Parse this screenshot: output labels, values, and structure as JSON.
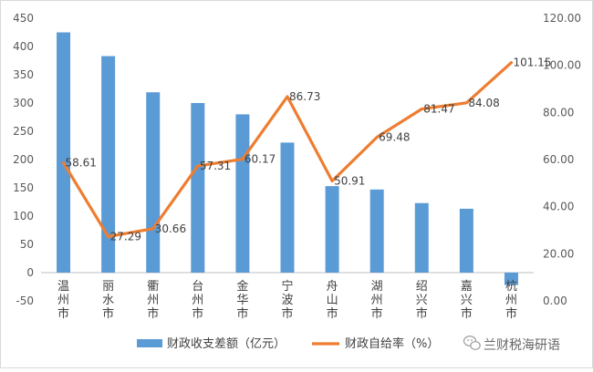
{
  "chart_data": {
    "type": "bar",
    "categories": [
      "温州市",
      "丽水市",
      "衢州市",
      "台州市",
      "金华市",
      "宁波市",
      "舟山市",
      "湖州市",
      "绍兴市",
      "嘉兴市",
      "杭州市"
    ],
    "series": [
      {
        "name": "财政收支差额（亿元）",
        "type": "bar",
        "axis": "left",
        "color": "#5B9BD5",
        "values": [
          425,
          383,
          319,
          300,
          280,
          230,
          153,
          147,
          123,
          113,
          -22
        ]
      },
      {
        "name": "财政自给率（%）",
        "type": "line",
        "axis": "right",
        "color": "#ED7D31",
        "values": [
          58.61,
          27.29,
          30.66,
          57.31,
          60.17,
          86.73,
          50.91,
          69.48,
          81.47,
          84.08,
          101.15
        ],
        "labels": [
          "58.61",
          "27.29",
          "30.66",
          "57.31",
          "60.17",
          "86.73",
          "50.91",
          "69.48",
          "81.47",
          "84.08",
          "101.15"
        ]
      }
    ],
    "y_left": {
      "min": -50,
      "max": 450,
      "ticks": [
        450,
        400,
        350,
        300,
        250,
        200,
        150,
        100,
        50,
        0,
        -50
      ],
      "tick_labels": [
        "450",
        "400",
        "350",
        "300",
        "250",
        "200",
        "150",
        "100",
        "50",
        "0",
        "-50"
      ]
    },
    "y_right": {
      "min": 0,
      "max": 120,
      "ticks": [
        120,
        100,
        80,
        60,
        40,
        20,
        0
      ],
      "tick_labels": [
        "120.00",
        "100.00",
        "80.00",
        "60.00",
        "40.00",
        "20.00",
        "0.00"
      ]
    },
    "grid": false,
    "legend_position": "bottom"
  },
  "watermark": "兰财税海研语"
}
